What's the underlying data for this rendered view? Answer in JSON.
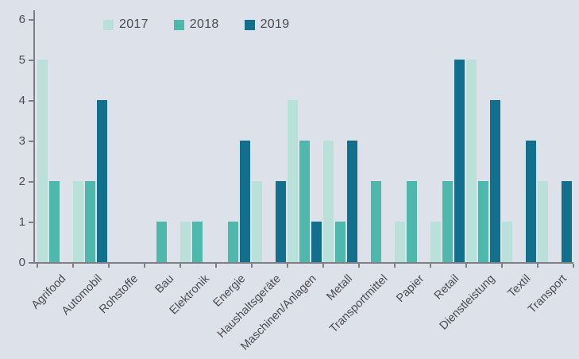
{
  "chart_data": {
    "type": "bar",
    "title": "",
    "xlabel": "",
    "ylabel": "",
    "ylim": [
      0,
      6
    ],
    "yticks": [
      0,
      1,
      2,
      3,
      4,
      5,
      6
    ],
    "grid": false,
    "legend_position": "top-left",
    "categories": [
      "Agrifood",
      "Automobil",
      "Rohstoffe",
      "Bau",
      "Elektronik",
      "Energie",
      "Haushaltsgeräte",
      "Maschinen/Anlagen",
      "Metall",
      "Transportmittel",
      "Papier",
      "Retail",
      "Dienstleistung",
      "Textil",
      "Transport"
    ],
    "series": [
      {
        "name": "2017",
        "color": "#b9e1da",
        "values": [
          5,
          2,
          0,
          0,
          1,
          0,
          2,
          4,
          3,
          0,
          1,
          1,
          5,
          1,
          2
        ]
      },
      {
        "name": "2018",
        "color": "#4fb8ac",
        "values": [
          2,
          2,
          0,
          1,
          1,
          1,
          0,
          3,
          1,
          2,
          2,
          2,
          2,
          0,
          0
        ]
      },
      {
        "name": "2019",
        "color": "#12708c",
        "values": [
          0,
          4,
          0,
          0,
          0,
          3,
          2,
          1,
          3,
          0,
          0,
          5,
          4,
          3,
          2
        ]
      }
    ]
  },
  "colors": {
    "background": "#dde1e9",
    "axis": "#7d7f83",
    "text": "#4a4c51",
    "series_2017": "#b9e1da",
    "series_2018": "#4fb8ac",
    "series_2019": "#12708c"
  }
}
